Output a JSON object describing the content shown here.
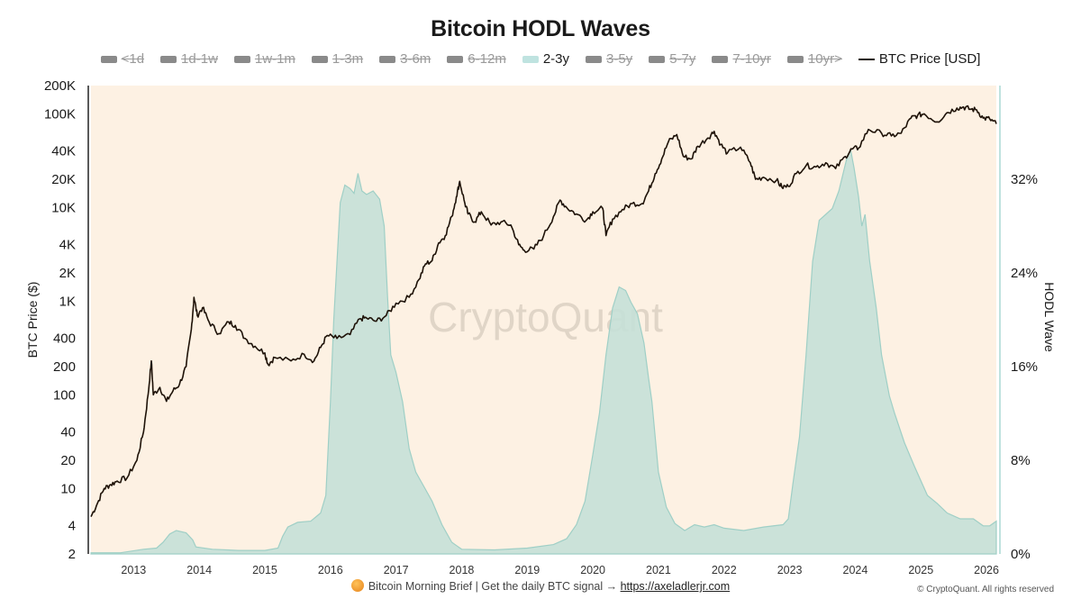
{
  "title": "Bitcoin HODL Waves",
  "legend": [
    {
      "label": "<1d",
      "color": "#8a8a8a",
      "active": false,
      "kind": "band"
    },
    {
      "label": "1d-1w",
      "color": "#8a8a8a",
      "active": false,
      "kind": "band"
    },
    {
      "label": "1w-1m",
      "color": "#8a8a8a",
      "active": false,
      "kind": "band"
    },
    {
      "label": "1-3m",
      "color": "#8a8a8a",
      "active": false,
      "kind": "band"
    },
    {
      "label": "3-6m",
      "color": "#8a8a8a",
      "active": false,
      "kind": "band"
    },
    {
      "label": "6-12m",
      "color": "#8a8a8a",
      "active": false,
      "kind": "band"
    },
    {
      "label": "2-3y",
      "color": "#bfe3e0",
      "active": true,
      "kind": "band"
    },
    {
      "label": "3-5y",
      "color": "#8a8a8a",
      "active": false,
      "kind": "band"
    },
    {
      "label": "5-7y",
      "color": "#8a8a8a",
      "active": false,
      "kind": "band"
    },
    {
      "label": "7-10yr",
      "color": "#8a8a8a",
      "active": false,
      "kind": "band"
    },
    {
      "label": "10yr>",
      "color": "#8a8a8a",
      "active": false,
      "kind": "band"
    },
    {
      "label": "BTC Price [USD]",
      "color": "#1e1208",
      "active": true,
      "kind": "line"
    }
  ],
  "watermark": "CryptoQuant",
  "footer": {
    "text": "Bitcoin Morning Brief | Get the daily BTC signal → ",
    "link": "https://axeladlerjr.com",
    "copyright": "© CryptoQuant. All rights reserved"
  },
  "colors": {
    "plot_bg": "#fdf1e3",
    "wave_fill": "#c5e0d7",
    "wave_stroke": "#9fcfc6",
    "price_line": "#1e1208",
    "right_axis": "#aad8d4"
  },
  "chart_data": {
    "type": "area",
    "title": "Bitcoin HODL Waves",
    "x_range": [
      2012.35,
      2026.15
    ],
    "x_ticks": [
      "2013",
      "2014",
      "2015",
      "2016",
      "2017",
      "2018",
      "2019",
      "2020",
      "2021",
      "2022",
      "2023",
      "2024",
      "2025",
      "2026"
    ],
    "y_left": {
      "label": "BTC Price ($)",
      "scale": "log",
      "range": [
        2,
        200000
      ],
      "ticks": [
        {
          "value": 2,
          "label": "2"
        },
        {
          "value": 4,
          "label": "4"
        },
        {
          "value": 10,
          "label": "10"
        },
        {
          "value": 20,
          "label": "20"
        },
        {
          "value": 40,
          "label": "40"
        },
        {
          "value": 100,
          "label": "100"
        },
        {
          "value": 200,
          "label": "200"
        },
        {
          "value": 400,
          "label": "400"
        },
        {
          "value": 1000,
          "label": "1K"
        },
        {
          "value": 2000,
          "label": "2K"
        },
        {
          "value": 4000,
          "label": "4K"
        },
        {
          "value": 10000,
          "label": "10K"
        },
        {
          "value": 20000,
          "label": "20K"
        },
        {
          "value": 40000,
          "label": "40K"
        },
        {
          "value": 100000,
          "label": "100K"
        },
        {
          "value": 200000,
          "label": "200K"
        }
      ]
    },
    "y_right": {
      "label": "HODL Wave",
      "range": [
        0,
        40
      ],
      "ticks": [
        {
          "value": 0,
          "label": "0%"
        },
        {
          "value": 8,
          "label": "8%"
        },
        {
          "value": 16,
          "label": "16%"
        },
        {
          "value": 24,
          "label": "24%"
        },
        {
          "value": 32,
          "label": "32%"
        }
      ]
    },
    "series": [
      {
        "name": "2-3y",
        "axis": "right",
        "style": "area",
        "points": [
          [
            2012.35,
            0.1
          ],
          [
            2012.8,
            0.1
          ],
          [
            2013.15,
            0.4
          ],
          [
            2013.35,
            0.5
          ],
          [
            2013.45,
            1.0
          ],
          [
            2013.55,
            1.7
          ],
          [
            2013.65,
            2.0
          ],
          [
            2013.8,
            1.8
          ],
          [
            2013.9,
            1.2
          ],
          [
            2013.95,
            0.6
          ],
          [
            2014.2,
            0.4
          ],
          [
            2014.6,
            0.3
          ],
          [
            2015.0,
            0.3
          ],
          [
            2015.2,
            0.5
          ],
          [
            2015.27,
            1.5
          ],
          [
            2015.35,
            2.3
          ],
          [
            2015.5,
            2.7
          ],
          [
            2015.7,
            2.8
          ],
          [
            2015.85,
            3.5
          ],
          [
            2015.93,
            5.0
          ],
          [
            2016.0,
            13.0
          ],
          [
            2016.05,
            20.0
          ],
          [
            2016.1,
            25.0
          ],
          [
            2016.15,
            30.0
          ],
          [
            2016.22,
            31.5
          ],
          [
            2016.3,
            31.2
          ],
          [
            2016.36,
            30.8
          ],
          [
            2016.42,
            32.5
          ],
          [
            2016.48,
            31.0
          ],
          [
            2016.55,
            30.7
          ],
          [
            2016.65,
            31.0
          ],
          [
            2016.75,
            30.3
          ],
          [
            2016.82,
            28.0
          ],
          [
            2016.87,
            22.0
          ],
          [
            2016.92,
            17.0
          ],
          [
            2017.0,
            15.5
          ],
          [
            2017.1,
            13.0
          ],
          [
            2017.2,
            9.0
          ],
          [
            2017.3,
            7.0
          ],
          [
            2017.4,
            6.0
          ],
          [
            2017.55,
            4.5
          ],
          [
            2017.7,
            2.5
          ],
          [
            2017.85,
            1.0
          ],
          [
            2018.0,
            0.4
          ],
          [
            2018.5,
            0.35
          ],
          [
            2019.0,
            0.5
          ],
          [
            2019.4,
            0.8
          ],
          [
            2019.6,
            1.3
          ],
          [
            2019.75,
            2.5
          ],
          [
            2019.88,
            4.5
          ],
          [
            2020.0,
            8.5
          ],
          [
            2020.1,
            12.0
          ],
          [
            2020.2,
            17.0
          ],
          [
            2020.3,
            21.0
          ],
          [
            2020.4,
            22.8
          ],
          [
            2020.5,
            22.5
          ],
          [
            2020.58,
            21.5
          ],
          [
            2020.68,
            20.5
          ],
          [
            2020.78,
            18.0
          ],
          [
            2020.85,
            15.0
          ],
          [
            2020.9,
            13.0
          ],
          [
            2021.0,
            7.0
          ],
          [
            2021.12,
            4.0
          ],
          [
            2021.25,
            2.6
          ],
          [
            2021.4,
            2.0
          ],
          [
            2021.55,
            2.5
          ],
          [
            2021.7,
            2.3
          ],
          [
            2021.85,
            2.5
          ],
          [
            2022.0,
            2.2
          ],
          [
            2022.3,
            2.0
          ],
          [
            2022.6,
            2.3
          ],
          [
            2022.9,
            2.5
          ],
          [
            2022.98,
            3.0
          ],
          [
            2023.05,
            6.0
          ],
          [
            2023.15,
            10.0
          ],
          [
            2023.25,
            17.0
          ],
          [
            2023.35,
            25.0
          ],
          [
            2023.45,
            28.5
          ],
          [
            2023.55,
            29.0
          ],
          [
            2023.65,
            29.5
          ],
          [
            2023.75,
            31.0
          ],
          [
            2023.88,
            34.0
          ],
          [
            2023.93,
            34.5
          ],
          [
            2023.98,
            33.0
          ],
          [
            2024.05,
            30.5
          ],
          [
            2024.1,
            28.0
          ],
          [
            2024.15,
            29.0
          ],
          [
            2024.22,
            25.0
          ],
          [
            2024.32,
            21.0
          ],
          [
            2024.4,
            17.0
          ],
          [
            2024.52,
            13.5
          ],
          [
            2024.6,
            12.0
          ],
          [
            2024.75,
            9.5
          ],
          [
            2024.9,
            7.5
          ],
          [
            2025.1,
            5.0
          ],
          [
            2025.25,
            4.3
          ],
          [
            2025.4,
            3.5
          ],
          [
            2025.6,
            3.0
          ],
          [
            2025.8,
            3.0
          ],
          [
            2025.95,
            2.4
          ],
          [
            2026.05,
            2.4
          ],
          [
            2026.15,
            2.8
          ]
        ]
      },
      {
        "name": "BTC Price [USD]",
        "axis": "left",
        "style": "line",
        "points": [
          [
            2012.35,
            5
          ],
          [
            2012.45,
            7
          ],
          [
            2012.55,
            10
          ],
          [
            2012.65,
            11
          ],
          [
            2012.75,
            12
          ],
          [
            2012.9,
            13
          ],
          [
            2013.05,
            20
          ],
          [
            2013.15,
            40
          ],
          [
            2013.22,
            100
          ],
          [
            2013.27,
            230
          ],
          [
            2013.3,
            100
          ],
          [
            2013.4,
            120
          ],
          [
            2013.5,
            85
          ],
          [
            2013.6,
            110
          ],
          [
            2013.7,
            130
          ],
          [
            2013.8,
            200
          ],
          [
            2013.88,
            500
          ],
          [
            2013.92,
            1100
          ],
          [
            2013.97,
            700
          ],
          [
            2014.05,
            850
          ],
          [
            2014.15,
            600
          ],
          [
            2014.3,
            450
          ],
          [
            2014.45,
            600
          ],
          [
            2014.55,
            550
          ],
          [
            2014.7,
            400
          ],
          [
            2014.85,
            330
          ],
          [
            2015.0,
            280
          ],
          [
            2015.05,
            210
          ],
          [
            2015.15,
            250
          ],
          [
            2015.4,
            230
          ],
          [
            2015.6,
            270
          ],
          [
            2015.75,
            230
          ],
          [
            2015.85,
            320
          ],
          [
            2015.95,
            430
          ],
          [
            2016.1,
            400
          ],
          [
            2016.3,
            440
          ],
          [
            2016.45,
            650
          ],
          [
            2016.55,
            660
          ],
          [
            2016.7,
            610
          ],
          [
            2016.85,
            700
          ],
          [
            2017.0,
            950
          ],
          [
            2017.2,
            1100
          ],
          [
            2017.35,
            1700
          ],
          [
            2017.45,
            2500
          ],
          [
            2017.55,
            2700
          ],
          [
            2017.65,
            4200
          ],
          [
            2017.75,
            5000
          ],
          [
            2017.85,
            8000
          ],
          [
            2017.92,
            13000
          ],
          [
            2017.97,
            19000
          ],
          [
            2018.05,
            11000
          ],
          [
            2018.1,
            8500
          ],
          [
            2018.2,
            7000
          ],
          [
            2018.3,
            9000
          ],
          [
            2018.45,
            6500
          ],
          [
            2018.6,
            7000
          ],
          [
            2018.75,
            6500
          ],
          [
            2018.87,
            4000
          ],
          [
            2018.95,
            3500
          ],
          [
            2019.1,
            3600
          ],
          [
            2019.25,
            5000
          ],
          [
            2019.4,
            8000
          ],
          [
            2019.5,
            12000
          ],
          [
            2019.6,
            10000
          ],
          [
            2019.75,
            8500
          ],
          [
            2019.9,
            7300
          ],
          [
            2020.0,
            9000
          ],
          [
            2020.15,
            9800
          ],
          [
            2020.2,
            5000
          ],
          [
            2020.3,
            7500
          ],
          [
            2020.45,
            9500
          ],
          [
            2020.6,
            11000
          ],
          [
            2020.75,
            11000
          ],
          [
            2020.85,
            15000
          ],
          [
            2020.95,
            23000
          ],
          [
            2021.05,
            33000
          ],
          [
            2021.15,
            50000
          ],
          [
            2021.28,
            60000
          ],
          [
            2021.38,
            35000
          ],
          [
            2021.5,
            33000
          ],
          [
            2021.6,
            45000
          ],
          [
            2021.75,
            55000
          ],
          [
            2021.85,
            65000
          ],
          [
            2021.95,
            47000
          ],
          [
            2022.05,
            38000
          ],
          [
            2022.25,
            44000
          ],
          [
            2022.4,
            30000
          ],
          [
            2022.48,
            20000
          ],
          [
            2022.6,
            21000
          ],
          [
            2022.8,
            19500
          ],
          [
            2022.88,
            16500
          ],
          [
            2022.98,
            16800
          ],
          [
            2023.1,
            23000
          ],
          [
            2023.25,
            28000
          ],
          [
            2023.4,
            27000
          ],
          [
            2023.55,
            30000
          ],
          [
            2023.7,
            26000
          ],
          [
            2023.85,
            35000
          ],
          [
            2023.95,
            42000
          ],
          [
            2024.05,
            43000
          ],
          [
            2024.2,
            68000
          ],
          [
            2024.4,
            62000
          ],
          [
            2024.55,
            58000
          ],
          [
            2024.7,
            62000
          ],
          [
            2024.85,
            90000
          ],
          [
            2024.95,
            96000
          ],
          [
            2025.05,
            100000
          ],
          [
            2025.25,
            82000
          ],
          [
            2025.4,
            103000
          ],
          [
            2025.55,
            115000
          ],
          [
            2025.65,
            118000
          ],
          [
            2025.75,
            112000
          ],
          [
            2025.85,
            110000
          ],
          [
            2025.95,
            90000
          ],
          [
            2026.05,
            88000
          ],
          [
            2026.15,
            78000
          ]
        ]
      }
    ]
  }
}
